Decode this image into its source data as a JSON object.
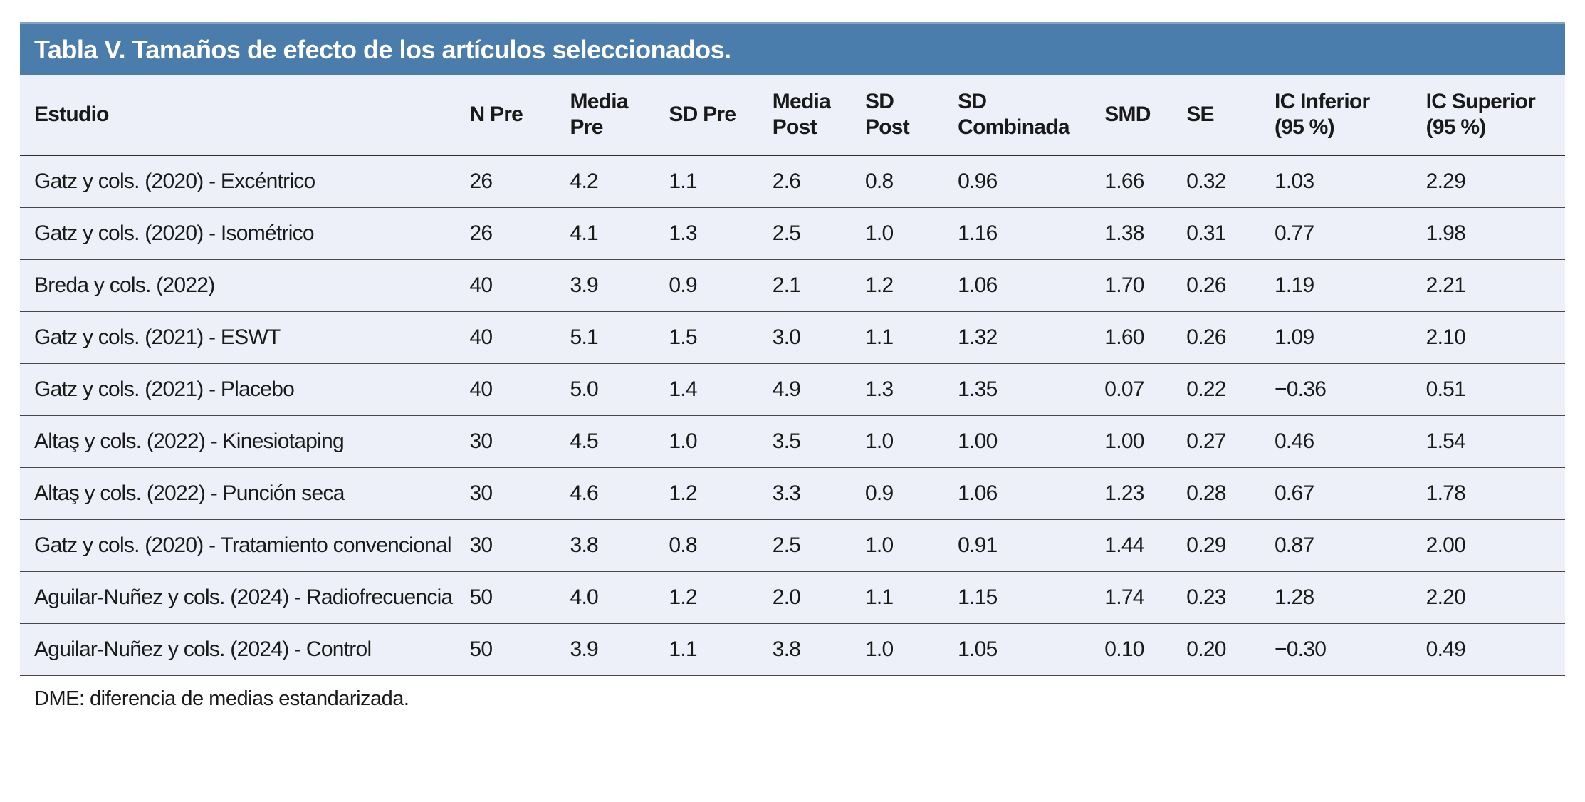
{
  "title": "Tabla V. Tamaños de efecto de los artículos seleccionados.",
  "footnote": "DME: diferencia de medias estandarizada.",
  "colors": {
    "title_bar_background": "#4b7dac",
    "title_bar_top_edge": "#83a3c2",
    "title_text": "#ffffff",
    "table_row_background": "#edf0f8",
    "row_separator_line": "#474747",
    "header_separator_line": "#2d2d2d",
    "body_text": "#1a1a1a"
  },
  "table": {
    "columns": [
      {
        "label": "Estudio"
      },
      {
        "label": "N Pre"
      },
      {
        "label": "Media\nPre"
      },
      {
        "label": "SD Pre"
      },
      {
        "label": "Media\nPost"
      },
      {
        "label": "SD\nPost"
      },
      {
        "label": "SD\nCombinada"
      },
      {
        "label": "SMD"
      },
      {
        "label": "SE"
      },
      {
        "label": "IC Inferior\n(95 %)"
      },
      {
        "label": "IC Superior\n(95 %)"
      }
    ],
    "rows": [
      {
        "study": "Gatz y cols. (2020) - Excéntrico",
        "values": [
          "26",
          "4.2",
          "1.1",
          "2.6",
          "0.8",
          "0.96",
          "1.66",
          "0.32",
          "1.03",
          "2.29"
        ]
      },
      {
        "study": "Gatz y cols. (2020) - Isométrico",
        "values": [
          "26",
          "4.1",
          "1.3",
          "2.5",
          "1.0",
          "1.16",
          "1.38",
          "0.31",
          "0.77",
          "1.98"
        ]
      },
      {
        "study": "Breda y cols. (2022)",
        "values": [
          "40",
          "3.9",
          "0.9",
          "2.1",
          "1.2",
          "1.06",
          "1.70",
          "0.26",
          "1.19",
          "2.21"
        ]
      },
      {
        "study": "Gatz y cols. (2021) - ESWT",
        "values": [
          "40",
          "5.1",
          "1.5",
          "3.0",
          "1.1",
          "1.32",
          "1.60",
          "0.26",
          "1.09",
          "2.10"
        ]
      },
      {
        "study": "Gatz y cols. (2021) - Placebo",
        "values": [
          "40",
          "5.0",
          "1.4",
          "4.9",
          "1.3",
          "1.35",
          "0.07",
          "0.22",
          "−0.36",
          "0.51"
        ]
      },
      {
        "study": "Altaş y cols. (2022) - Kinesiotaping",
        "values": [
          "30",
          "4.5",
          "1.0",
          "3.5",
          "1.0",
          "1.00",
          "1.00",
          "0.27",
          "0.46",
          "1.54"
        ]
      },
      {
        "study": "Altaş y cols. (2022) - Punción seca",
        "values": [
          "30",
          "4.6",
          "1.2",
          "3.3",
          "0.9",
          "1.06",
          "1.23",
          "0.28",
          "0.67",
          "1.78"
        ]
      },
      {
        "study": "Gatz y cols. (2020) - Tratamiento convencional",
        "values": [
          "30",
          "3.8",
          "0.8",
          "2.5",
          "1.0",
          "0.91",
          "1.44",
          "0.29",
          "0.87",
          "2.00"
        ]
      },
      {
        "study": "Aguilar-Nuñez y cols. (2024) - Radiofrecuencia",
        "values": [
          "50",
          "4.0",
          "1.2",
          "2.0",
          "1.1",
          "1.15",
          "1.74",
          "0.23",
          "1.28",
          "2.20"
        ]
      },
      {
        "study": "Aguilar-Nuñez y cols. (2024) - Control",
        "values": [
          "50",
          "3.9",
          "1.1",
          "3.8",
          "1.0",
          "1.05",
          "0.10",
          "0.20",
          "−0.30",
          "0.49"
        ]
      }
    ]
  }
}
